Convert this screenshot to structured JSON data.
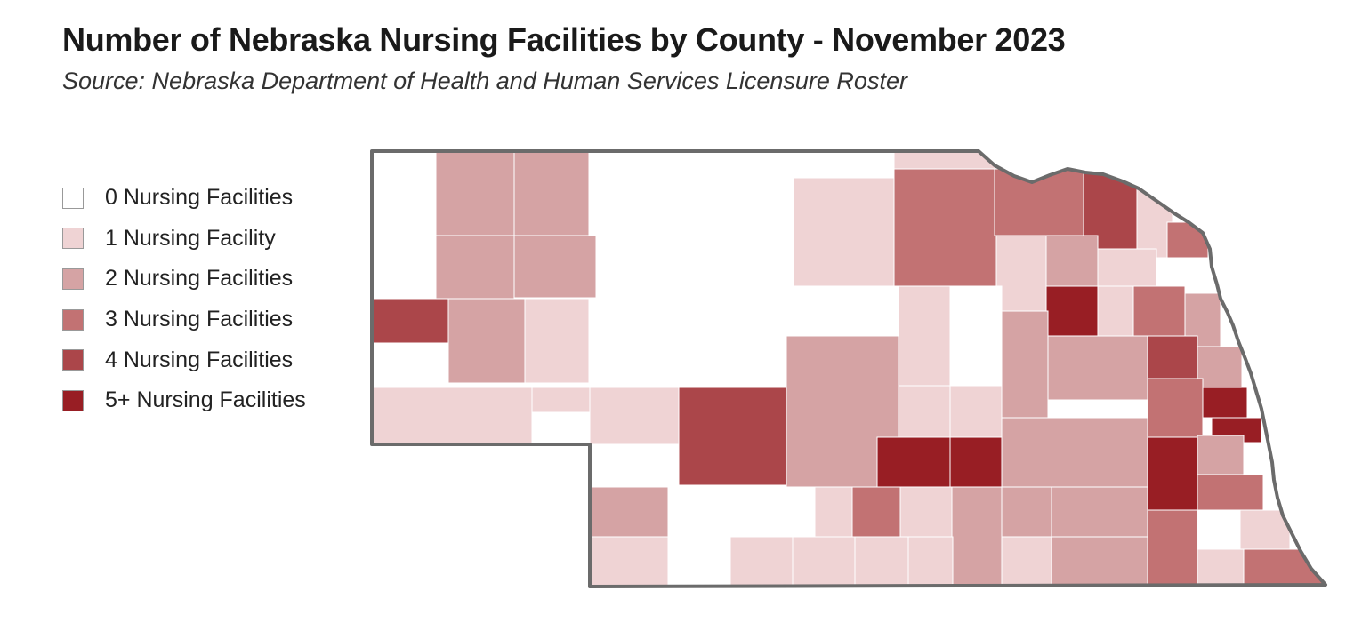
{
  "title": "Number of Nebraska Nursing Facilities by County - November 2023",
  "subtitle": "Source: Nebraska Department of Health and Human Services Licensure Roster",
  "legend": [
    {
      "label": "0 Nursing Facilities",
      "color": "#ffffff"
    },
    {
      "label": "1 Nursing Facility",
      "color": "#efd3d4"
    },
    {
      "label": "2 Nursing Facilities",
      "color": "#d5a3a4"
    },
    {
      "label": "3 Nursing Facilities",
      "color": "#c27273"
    },
    {
      "label": "4 Nursing Facilities",
      "color": "#ab464a"
    },
    {
      "label": "5+ Nursing Facilities",
      "color": "#981e24"
    }
  ],
  "map": {
    "state": "Nebraska",
    "border_color": "#6b6b6b"
  }
}
